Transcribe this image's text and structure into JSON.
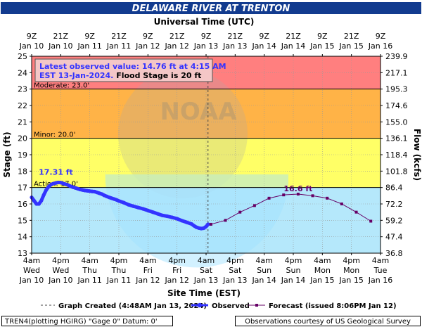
{
  "chart_data": {
    "type": "line",
    "title": "DELAWARE RIVER AT TRENTON",
    "top_axis_title": "Universal Time (UTC)",
    "top_ticks": [
      [
        "9Z",
        "Jan 10"
      ],
      [
        "21Z",
        "Jan 10"
      ],
      [
        "9Z",
        "Jan 11"
      ],
      [
        "21Z",
        "Jan 11"
      ],
      [
        "9Z",
        "Jan 12"
      ],
      [
        "21Z",
        "Jan 12"
      ],
      [
        "9Z",
        "Jan 13"
      ],
      [
        "21Z",
        "Jan 13"
      ],
      [
        "9Z",
        "Jan 14"
      ],
      [
        "21Z",
        "Jan 14"
      ],
      [
        "9Z",
        "Jan 15"
      ],
      [
        "21Z",
        "Jan 15"
      ],
      [
        "9Z",
        "Jan 16"
      ]
    ],
    "bottom_ticks": [
      [
        "4am",
        "Wed",
        "Jan 10"
      ],
      [
        "4pm",
        "Wed",
        "Jan 10"
      ],
      [
        "4am",
        "Thu",
        "Jan 11"
      ],
      [
        "4pm",
        "Thu",
        "Jan 11"
      ],
      [
        "4am",
        "Fri",
        "Jan 12"
      ],
      [
        "4pm",
        "Fri",
        "Jan 12"
      ],
      [
        "4am",
        "Sat",
        "Jan 13"
      ],
      [
        "4pm",
        "Sat",
        "Jan 13"
      ],
      [
        "4am",
        "Sun",
        "Jan 14"
      ],
      [
        "4pm",
        "Sun",
        "Jan 14"
      ],
      [
        "4am",
        "Mon",
        "Jan 15"
      ],
      [
        "4pm",
        "Mon",
        "Jan 15"
      ],
      [
        "4am",
        "Tue",
        "Jan 16"
      ]
    ],
    "xlabel": "Site Time (EST)",
    "ylabel": "Stage (ft)",
    "ylabel_right": "Flow (kcfs)",
    "x_unit": "hours after 4am EST Wed Jan 10",
    "xlim": [
      0,
      144
    ],
    "ylim": [
      13,
      25
    ],
    "left_ticks": [
      13,
      14,
      15,
      16,
      17,
      18,
      19,
      20,
      21,
      22,
      23,
      24,
      25
    ],
    "right_ticks": [
      "36.8",
      "47.4",
      "59.2",
      "72.2",
      "86.4",
      "101.8",
      "118.4",
      "136.1",
      "155.0",
      "174.6",
      "195.3",
      "217.1",
      "239.9"
    ],
    "flood_bands": [
      {
        "name": "Action",
        "label": "Action: 17.0'",
        "from": 17,
        "to": 20,
        "color": "#ffff66"
      },
      {
        "name": "Minor",
        "label": "Minor: 20.0'",
        "from": 20,
        "to": 23,
        "color": "#ffb347"
      },
      {
        "name": "Moderate",
        "label": "Moderate: 23.0'",
        "from": 23,
        "to": 25,
        "color": "#ff7f7f"
      }
    ],
    "graph_created_x": 72.8,
    "observed": {
      "name": "Observed",
      "color": "#3333ff",
      "x": [
        0,
        1,
        2,
        3,
        4,
        5,
        6,
        7,
        8,
        9,
        10,
        11,
        12,
        13,
        14,
        15,
        16,
        17,
        18,
        19,
        20,
        21,
        22,
        23,
        24,
        25,
        26,
        27,
        28,
        29,
        30,
        31,
        32,
        33,
        34,
        35,
        36,
        38,
        40,
        42,
        44,
        46,
        48,
        50,
        52,
        54,
        56,
        58,
        60,
        62,
        64,
        66,
        67,
        68,
        69,
        70,
        71,
        72,
        72.8
      ],
      "values": [
        16.4,
        16.2,
        16.0,
        16.0,
        16.2,
        16.55,
        16.85,
        17.05,
        17.18,
        17.24,
        17.28,
        17.31,
        17.3,
        17.25,
        17.2,
        17.15,
        17.08,
        17.02,
        16.98,
        16.93,
        16.88,
        16.85,
        16.82,
        16.8,
        16.78,
        16.76,
        16.75,
        16.7,
        16.65,
        16.6,
        16.52,
        16.46,
        16.4,
        16.35,
        16.3,
        16.25,
        16.18,
        16.08,
        15.95,
        15.86,
        15.78,
        15.7,
        15.6,
        15.5,
        15.4,
        15.3,
        15.25,
        15.18,
        15.1,
        14.98,
        14.88,
        14.78,
        14.67,
        14.58,
        14.53,
        14.5,
        14.52,
        14.62,
        14.76
      ]
    },
    "forecast": {
      "name": "Forecast (issued 8:06PM Jan 12)",
      "color": "#660066",
      "x": [
        74,
        80,
        86,
        92,
        98,
        104,
        110,
        116,
        122,
        128,
        134,
        140
      ],
      "values": [
        14.76,
        15.0,
        15.5,
        15.9,
        16.35,
        16.55,
        16.6,
        16.5,
        16.35,
        16.0,
        15.5,
        14.95
      ]
    },
    "annotations": {
      "observed_peak": {
        "text": "17.31 ft",
        "x": 10,
        "y": 17.31
      },
      "forecast_peak": {
        "text": "16.6 ft",
        "x": 110,
        "y": 16.6
      }
    },
    "info_box": {
      "line1": "Latest observed value: 14.76 ft at 4:15 AM",
      "line2a": "EST 13-Jan-2024.",
      "line2b": " Flood Stage is 20 ft"
    },
    "legend": {
      "graph_created": "Graph Created (4:48AM Jan 13, 2024)",
      "observed": "Observed",
      "forecast": "Forecast (issued 8:06PM Jan 12)"
    }
  },
  "footer": {
    "left": "TREN4(plotting HGIRG) \"Gage 0\" Datum: 0'",
    "right": "Observations courtesy of US Geological Survey"
  }
}
